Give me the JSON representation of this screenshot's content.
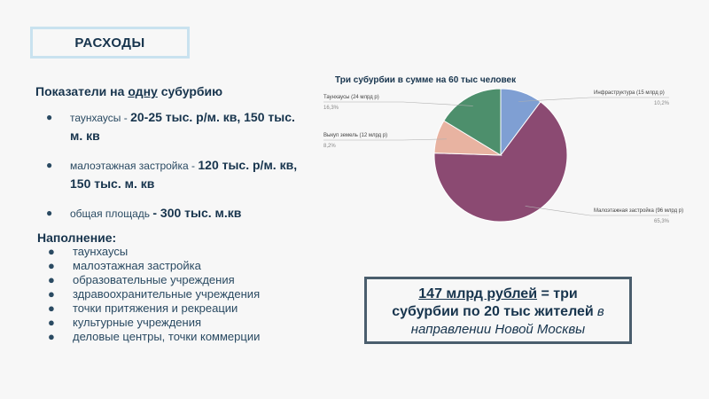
{
  "header": {
    "title": "РАСХОДЫ"
  },
  "metrics": {
    "heading_prefix": "Показатели на ",
    "heading_underlined": "одну",
    "heading_suffix": " субурбию",
    "items": [
      {
        "label": "таунхаусы - ",
        "value": "20-25 тыс. р/м. кв, 150 тыс. м. кв"
      },
      {
        "label": "малоэтажная застройка - ",
        "value": "120 тыс. р/м. кв, 150 тыс. м. кв"
      },
      {
        "label": "общая площадь ",
        "value": "- 300 тыс. м.кв"
      }
    ]
  },
  "filling": {
    "heading": "Наполнение:",
    "items": [
      "таунхаусы",
      "малоэтажная застройка",
      "образовательные учреждения",
      "здравоохранительные учреждения",
      "точки притяжения и рекреации",
      "культурные учреждения",
      "деловые центры, точки коммерции"
    ]
  },
  "summary": {
    "amount": "147 млрд рублей",
    "equals_text": " = три",
    "line2_bold": "субурбии по 20 тыс жителей",
    "line2_italic": " в",
    "line3": "направлении Новой Москвы"
  },
  "chart_data": {
    "type": "pie",
    "title": "Три субурбии в сумме на 60 тыс человек",
    "slices": [
      {
        "name": "Инфраструктура (15 млрд р)",
        "value": 15,
        "percent": "10,2%",
        "color": "#7f9fd3"
      },
      {
        "name": "Малоэтажная застройка (96 млрд р)",
        "value": 96,
        "percent": "65,3%",
        "color": "#8b4a72"
      },
      {
        "name": "Выкуп земель (12 млрд р)",
        "value": 12,
        "percent": "8,2%",
        "color": "#e8b3a1"
      },
      {
        "name": "Таунхаусы (24 млрд р)",
        "value": 24,
        "percent": "16,3%",
        "color": "#4d8f6c"
      }
    ]
  }
}
